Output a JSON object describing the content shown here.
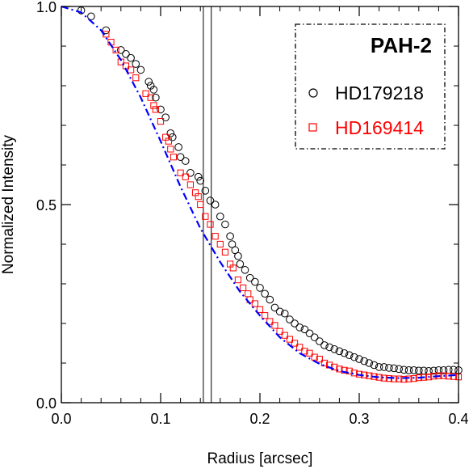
{
  "chart_data": {
    "type": "scatter",
    "title": "",
    "xlabel": "Radius [arcsec]",
    "ylabel": "Normalized Intensity",
    "xlim": [
      0.0,
      0.4
    ],
    "ylim": [
      0.0,
      1.0
    ],
    "x_ticks": [
      "0.0",
      "0.1",
      "0.2",
      "0.3",
      "0.4"
    ],
    "y_ticks": [
      "0.0",
      "0.5",
      "1.0"
    ],
    "x_tick_values": [
      0.0,
      0.1,
      0.2,
      0.3,
      0.4
    ],
    "y_tick_values": [
      0.0,
      0.5,
      1.0
    ],
    "x_minor_step": 0.02,
    "y_minor_step": 0.1,
    "grid": false,
    "legend": {
      "title": "PAH-2",
      "placement": "top-right",
      "entries": [
        {
          "label": "HD179218",
          "marker": "circle",
          "color": "#000000"
        },
        {
          "label": "HD169414",
          "marker": "square",
          "color": "#ff0000"
        }
      ]
    },
    "vertical_lines": [
      0.143,
      0.151
    ],
    "series": [
      {
        "label": "HD179218",
        "marker": "circle",
        "color": "#000000",
        "x": [
          0.02,
          0.03,
          0.045,
          0.06,
          0.065,
          0.07,
          0.075,
          0.08,
          0.088,
          0.09,
          0.093,
          0.095,
          0.1,
          0.105,
          0.11,
          0.112,
          0.118,
          0.12,
          0.125,
          0.13,
          0.138,
          0.14,
          0.145,
          0.15,
          0.155,
          0.16,
          0.165,
          0.17,
          0.172,
          0.175,
          0.178,
          0.18,
          0.185,
          0.19,
          0.195,
          0.2,
          0.205,
          0.21,
          0.215,
          0.22,
          0.225,
          0.23,
          0.235,
          0.24,
          0.245,
          0.25,
          0.255,
          0.26,
          0.265,
          0.27,
          0.275,
          0.28,
          0.285,
          0.29,
          0.295,
          0.3,
          0.305,
          0.31,
          0.315,
          0.32,
          0.325,
          0.33,
          0.335,
          0.34,
          0.345,
          0.35,
          0.355,
          0.36,
          0.365,
          0.37,
          0.375,
          0.38,
          0.385,
          0.39,
          0.395,
          0.4
        ],
        "y": [
          0.99,
          0.975,
          0.94,
          0.89,
          0.88,
          0.87,
          0.855,
          0.84,
          0.81,
          0.8,
          0.79,
          0.77,
          0.74,
          0.72,
          0.68,
          0.67,
          0.645,
          0.62,
          0.61,
          0.58,
          0.57,
          0.56,
          0.535,
          0.51,
          0.5,
          0.47,
          0.45,
          0.42,
          0.4,
          0.385,
          0.37,
          0.35,
          0.335,
          0.315,
          0.305,
          0.29,
          0.275,
          0.26,
          0.24,
          0.23,
          0.225,
          0.21,
          0.2,
          0.19,
          0.185,
          0.175,
          0.165,
          0.155,
          0.145,
          0.14,
          0.135,
          0.13,
          0.125,
          0.12,
          0.115,
          0.11,
          0.105,
          0.1,
          0.095,
          0.09,
          0.09,
          0.088,
          0.087,
          0.085,
          0.083,
          0.082,
          0.082,
          0.081,
          0.081,
          0.08,
          0.081,
          0.082,
          0.082,
          0.083,
          0.083,
          0.082
        ]
      },
      {
        "label": "HD169414",
        "marker": "square",
        "color": "#ff0000",
        "x": [
          0.045,
          0.05,
          0.055,
          0.06,
          0.065,
          0.07,
          0.075,
          0.085,
          0.09,
          0.093,
          0.095,
          0.1,
          0.105,
          0.108,
          0.11,
          0.113,
          0.12,
          0.125,
          0.13,
          0.135,
          0.138,
          0.14,
          0.145,
          0.15,
          0.155,
          0.16,
          0.165,
          0.17,
          0.173,
          0.178,
          0.183,
          0.188,
          0.19,
          0.195,
          0.2,
          0.205,
          0.21,
          0.215,
          0.22,
          0.225,
          0.23,
          0.235,
          0.24,
          0.245,
          0.25,
          0.255,
          0.26,
          0.265,
          0.27,
          0.275,
          0.28,
          0.285,
          0.29,
          0.295,
          0.3,
          0.305,
          0.31,
          0.315,
          0.32,
          0.325,
          0.33,
          0.335,
          0.34,
          0.345,
          0.35,
          0.355,
          0.36,
          0.365,
          0.37,
          0.375,
          0.38,
          0.385,
          0.39,
          0.395,
          0.4
        ],
        "y": [
          0.93,
          0.91,
          0.89,
          0.86,
          0.85,
          0.84,
          0.82,
          0.78,
          0.77,
          0.75,
          0.74,
          0.71,
          0.67,
          0.66,
          0.64,
          0.62,
          0.58,
          0.57,
          0.55,
          0.53,
          0.52,
          0.5,
          0.47,
          0.45,
          0.42,
          0.4,
          0.38,
          0.35,
          0.34,
          0.31,
          0.29,
          0.275,
          0.26,
          0.25,
          0.235,
          0.22,
          0.205,
          0.195,
          0.18,
          0.17,
          0.16,
          0.15,
          0.14,
          0.13,
          0.125,
          0.115,
          0.11,
          0.1,
          0.095,
          0.09,
          0.085,
          0.082,
          0.08,
          0.075,
          0.072,
          0.07,
          0.068,
          0.066,
          0.064,
          0.062,
          0.061,
          0.06,
          0.06,
          0.059,
          0.06,
          0.061,
          0.063,
          0.064,
          0.065,
          0.067,
          0.068,
          0.068,
          0.067,
          0.066,
          0.065
        ]
      },
      {
        "label": "",
        "style": "dash-dot",
        "color": "#0000ff",
        "x": [
          0.0,
          0.02,
          0.04,
          0.06,
          0.08,
          0.1,
          0.12,
          0.14,
          0.16,
          0.18,
          0.2,
          0.22,
          0.24,
          0.26,
          0.28,
          0.3,
          0.32,
          0.34,
          0.36,
          0.38,
          0.4
        ],
        "y": [
          1.0,
          0.985,
          0.94,
          0.865,
          0.77,
          0.66,
          0.545,
          0.44,
          0.355,
          0.28,
          0.22,
          0.165,
          0.125,
          0.098,
          0.08,
          0.07,
          0.064,
          0.062,
          0.063,
          0.067,
          0.07
        ]
      }
    ]
  }
}
